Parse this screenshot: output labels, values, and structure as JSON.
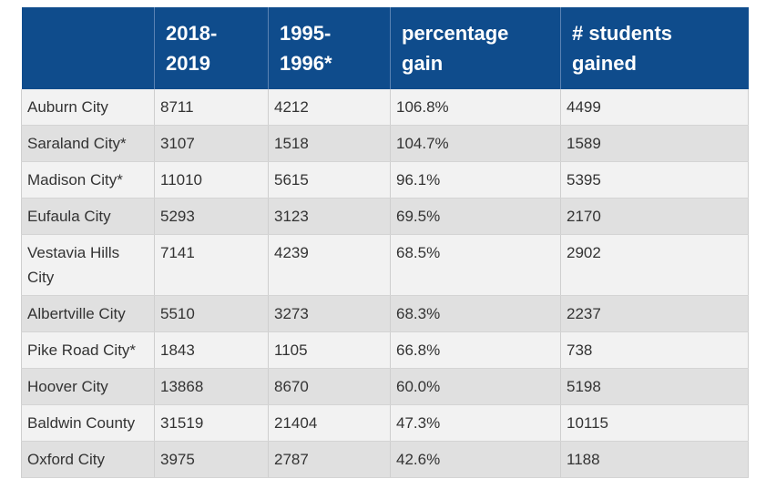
{
  "table": {
    "headers": [
      "",
      "2018-\n2019",
      "1995-\n1996*",
      "percentage\ngain",
      "# students\ngained"
    ],
    "rows": [
      [
        "Auburn City",
        "8711",
        "4212",
        "106.8%",
        "4499"
      ],
      [
        "Saraland City*",
        "3107",
        "1518",
        "104.7%",
        "1589"
      ],
      [
        "Madison City*",
        "11010",
        "5615",
        "96.1%",
        "5395"
      ],
      [
        "Eufaula City",
        "5293",
        "3123",
        "69.5%",
        "2170"
      ],
      [
        "Vestavia Hills City",
        "7141",
        "4239",
        "68.5%",
        "2902"
      ],
      [
        "Albertville City",
        "5510",
        "3273",
        "68.3%",
        "2237"
      ],
      [
        "Pike Road City*",
        "1843",
        "1105",
        "66.8%",
        "738"
      ],
      [
        "Hoover City",
        "13868",
        "8670",
        "60.0%",
        "5198"
      ],
      [
        "Baldwin County",
        "31519",
        "21404",
        "47.3%",
        "10115"
      ],
      [
        "Oxford City",
        "3975",
        "2787",
        "42.6%",
        "1188"
      ]
    ]
  },
  "colors": {
    "header_bg": "#0f4c8c",
    "header_text": "#ffffff",
    "row_odd": "#f2f2f2",
    "row_even": "#e0e0e0"
  }
}
